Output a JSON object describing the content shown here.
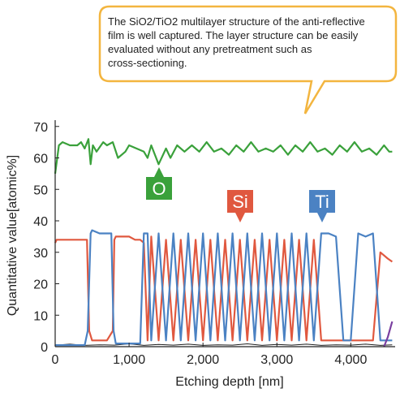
{
  "chart_data": {
    "type": "line",
    "xlabel": "Etching depth [nm]",
    "ylabel": "Quantitative value[atomic%]",
    "xlim": [
      0,
      4600
    ],
    "ylim": [
      0,
      72
    ],
    "x_ticks": [
      0,
      1000,
      2000,
      3000,
      4000
    ],
    "x_tick_labels": [
      "0",
      "1,000",
      "2,000",
      "3,000",
      "4,000"
    ],
    "y_ticks": [
      0,
      10,
      20,
      30,
      40,
      50,
      60,
      70
    ],
    "y_tick_labels": [
      "0",
      "10",
      "20",
      "30",
      "40",
      "50",
      "60",
      "70"
    ],
    "grid": false,
    "series": [
      {
        "name": "O",
        "color": "#3aa13b",
        "x": [
          0,
          50,
          100,
          200,
          300,
          350,
          400,
          450,
          480,
          510,
          560,
          650,
          700,
          780,
          850,
          950,
          1000,
          1100,
          1200,
          1250,
          1300,
          1400,
          1500,
          1560,
          1650,
          1750,
          1850,
          1950,
          2050,
          2150,
          2250,
          2350,
          2450,
          2550,
          2650,
          2750,
          2850,
          2950,
          3050,
          3150,
          3250,
          3350,
          3450,
          3550,
          3650,
          3750,
          3850,
          3950,
          4050,
          4150,
          4250,
          4350,
          4450,
          4520,
          4560
        ],
        "values": [
          55,
          64,
          65,
          64,
          64,
          65,
          63,
          66,
          58,
          64,
          62,
          65,
          64,
          65,
          60,
          62,
          64,
          63,
          62,
          60,
          64,
          58,
          63,
          60,
          64,
          62,
          64,
          62,
          65,
          62,
          63,
          61,
          64,
          62,
          65,
          62,
          63,
          62,
          64,
          61,
          64,
          62,
          65,
          62,
          63,
          61,
          64,
          62,
          65,
          62,
          63,
          61,
          64,
          62,
          62
        ]
      },
      {
        "name": "Si",
        "color": "#e0583f",
        "x": [
          0,
          20,
          60,
          150,
          300,
          400,
          430,
          460,
          500,
          600,
          700,
          780,
          800,
          820,
          860,
          920,
          1000,
          1080,
          1100,
          1150,
          1200,
          1250,
          1300,
          1400,
          1500,
          1600,
          1700,
          1800,
          1900,
          2000,
          2100,
          2200,
          2300,
          2400,
          2500,
          2600,
          2700,
          2800,
          2900,
          3000,
          3100,
          3200,
          3300,
          3400,
          3500,
          3600,
          3700,
          3800,
          3900,
          4000,
          4100,
          4200,
          4300,
          4400,
          4500,
          4560
        ],
        "values": [
          33,
          34,
          34,
          34,
          34,
          34,
          34,
          5,
          2,
          2,
          2,
          5,
          34,
          35,
          35,
          35,
          35,
          34,
          34,
          34,
          33,
          2,
          35,
          2,
          34,
          2,
          34,
          2,
          34,
          2,
          34,
          2,
          34,
          2,
          34,
          2,
          34,
          2,
          34,
          2,
          34,
          2,
          34,
          2,
          34,
          2,
          2,
          2,
          2,
          2,
          2,
          2,
          2,
          30,
          28,
          27
        ]
      },
      {
        "name": "Ti",
        "color": "#4b82c3",
        "x": [
          0,
          100,
          200,
          300,
          400,
          440,
          480,
          500,
          600,
          700,
          760,
          790,
          820,
          900,
          1000,
          1080,
          1110,
          1150,
          1200,
          1250,
          1300,
          1400,
          1500,
          1600,
          1700,
          1800,
          1900,
          2000,
          2100,
          2200,
          2300,
          2400,
          2500,
          2600,
          2700,
          2800,
          2900,
          3000,
          3100,
          3200,
          3300,
          3400,
          3500,
          3600,
          3700,
          3800,
          3900,
          4000,
          4100,
          4200,
          4300,
          4400,
          4500,
          4560
        ],
        "values": [
          0.5,
          0.5,
          0.5,
          0.5,
          0.5,
          5,
          36,
          37,
          36,
          36,
          36,
          5,
          1,
          1,
          1,
          1,
          1,
          1,
          36,
          36,
          2,
          36,
          2,
          36,
          2,
          36,
          2,
          36,
          2,
          36,
          2,
          36,
          2,
          36,
          2,
          36,
          2,
          36,
          2,
          36,
          2,
          36,
          2,
          36,
          36,
          35,
          2,
          2,
          36,
          35,
          36,
          2,
          2,
          2
        ]
      },
      {
        "name": "",
        "color": "#222222",
        "x": [
          0,
          200,
          400,
          600,
          800,
          1000,
          1200,
          1400,
          1600,
          1800,
          2000,
          2200,
          2400,
          2600,
          2800,
          3000,
          3200,
          3400,
          3600,
          3800,
          4000,
          4200,
          4400,
          4560
        ],
        "values": [
          0.5,
          0.8,
          0.4,
          0.6,
          0.5,
          0.9,
          0.4,
          0.7,
          0.5,
          0.8,
          0.4,
          0.6,
          0.5,
          0.9,
          0.4,
          0.7,
          0.5,
          0.8,
          0.4,
          0.6,
          0.5,
          0.8,
          0.4,
          0.6
        ]
      },
      {
        "name": "",
        "color": "#7a3fa0",
        "x": [
          4450,
          4500,
          4560
        ],
        "values": [
          0,
          3,
          8
        ]
      }
    ],
    "labels": [
      {
        "text": "O",
        "color": "#3aa13b",
        "series": "O"
      },
      {
        "text": "Si",
        "color": "#e0583f",
        "series": "Si"
      },
      {
        "text": "Ti",
        "color": "#4b82c3",
        "series": "Ti"
      }
    ],
    "annotation": {
      "text_lines": [
        "The SiO2/TiO2 multilayer structure of the anti-reflective",
        "film is well captured. The layer structure can be easily",
        "evaluated without any pretreatment such as",
        "cross-sectioning."
      ],
      "border_color": "#f3b53f"
    }
  }
}
